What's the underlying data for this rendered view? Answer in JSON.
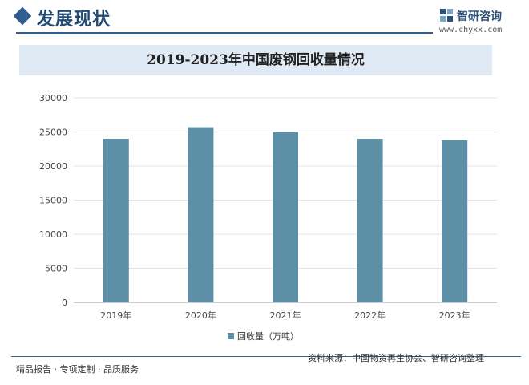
{
  "header": {
    "section_title": "发展现状"
  },
  "logo": {
    "name": "智研咨询",
    "url": "www.chyxx.com"
  },
  "chart_data": {
    "type": "bar",
    "title": "2019-2023年中国废钢回收量情况",
    "categories": [
      "2019年",
      "2020年",
      "2021年",
      "2022年",
      "2023年"
    ],
    "series": [
      {
        "name": "回收量（万吨）",
        "values": [
          24000,
          25700,
          25000,
          24000,
          23800
        ]
      }
    ],
    "ylim": [
      0,
      30000
    ],
    "yticks": [
      0,
      5000,
      10000,
      15000,
      20000,
      25000,
      30000
    ],
    "grid": true,
    "legend_position": "bottom",
    "bar_color": "#5d8fa7"
  },
  "footer": {
    "left_text": "精品报告 · 专项定制 · 品质服务",
    "source_text": "资料来源：中国物资再生协会、智研咨询整理"
  }
}
